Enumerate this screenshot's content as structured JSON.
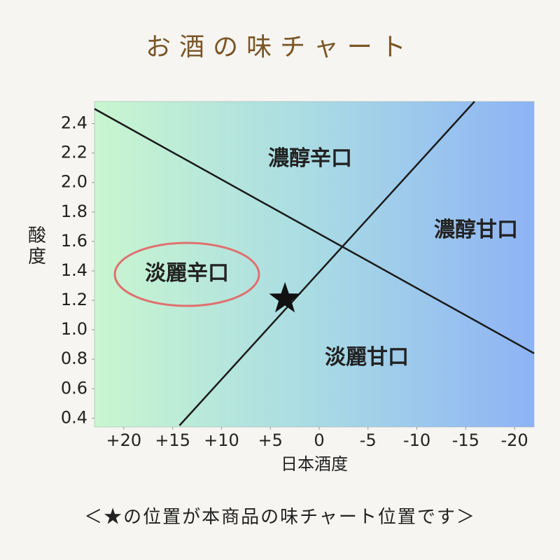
{
  "chart_data": {
    "type": "quadrant",
    "title": "お酒の味チャート",
    "x_label": "日本酒度",
    "y_label": "酸度",
    "note": "＜★の位置が本商品の味チャート位置です＞",
    "xlim": [
      23,
      -22
    ],
    "ylim": [
      0.34,
      2.55
    ],
    "xticks": [
      {
        "value": 20,
        "label": "+20"
      },
      {
        "value": 15,
        "label": "+15"
      },
      {
        "value": 10,
        "label": "+10"
      },
      {
        "value": 5,
        "label": "+5"
      },
      0,
      -5,
      -10,
      -15,
      -20
    ],
    "yticks": [
      0.4,
      0.6,
      0.8,
      {
        "value": 1,
        "label": "1.0"
      },
      1.2,
      1.4,
      1.6,
      1.8,
      {
        "value": 2,
        "label": "2.0"
      },
      2.2,
      2.4
    ],
    "lines": [
      {
        "x": [
          23,
          -22
        ],
        "y": [
          2.5,
          0.84
        ]
      },
      {
        "x": [
          14.3,
          -15.9
        ],
        "y": [
          0.35,
          2.55
        ]
      }
    ],
    "regions": [
      "濃醇辛口",
      "濃醇甘口",
      "淡麗辛口",
      "淡麗甘口"
    ],
    "marker": {
      "label": "★",
      "x": 3.5,
      "y": 1.21
    }
  }
}
